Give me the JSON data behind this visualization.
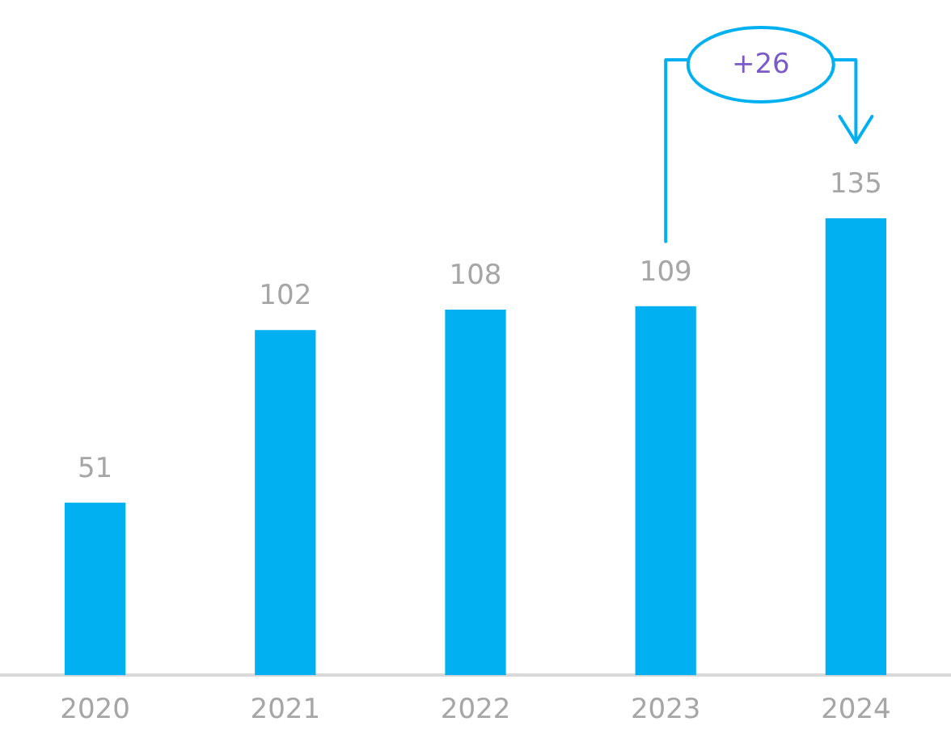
{
  "chart_data": {
    "type": "bar",
    "categories": [
      "2020",
      "2021",
      "2022",
      "2023",
      "2024"
    ],
    "values": [
      51,
      102,
      108,
      109,
      135
    ],
    "color": "#00b0f0",
    "data_labels": true,
    "grid": false,
    "legend": false,
    "annotations": [
      "+26"
    ]
  }
}
